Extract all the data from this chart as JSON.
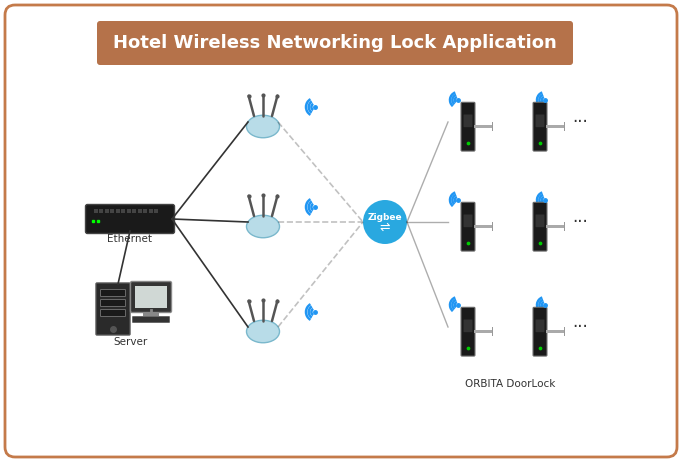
{
  "title": "Hotel Wireless Networking Lock Application",
  "title_color": "#ffffff",
  "title_bg_color": "#b5724a",
  "border_color": "#c47a4a",
  "bg_color": "#ffffff",
  "wifi_color": "#2196F3",
  "zigbee_color": "#29a8e0",
  "zigbee_text": "Zigbee",
  "ethernet_label": "Ethernet",
  "server_label": "Server",
  "orbita_label": "ORBITA DoorLock",
  "router_body_color": "#b8dce8",
  "switch_color": "#1a1a1a",
  "server_color": "#2a2a2a",
  "monitor_color": "#333333",
  "lock_body_color": "#888888",
  "lock_handle_color": "#aaaaaa",
  "lock_panel_color": "#1a1a1a",
  "dots_color": "#333333"
}
